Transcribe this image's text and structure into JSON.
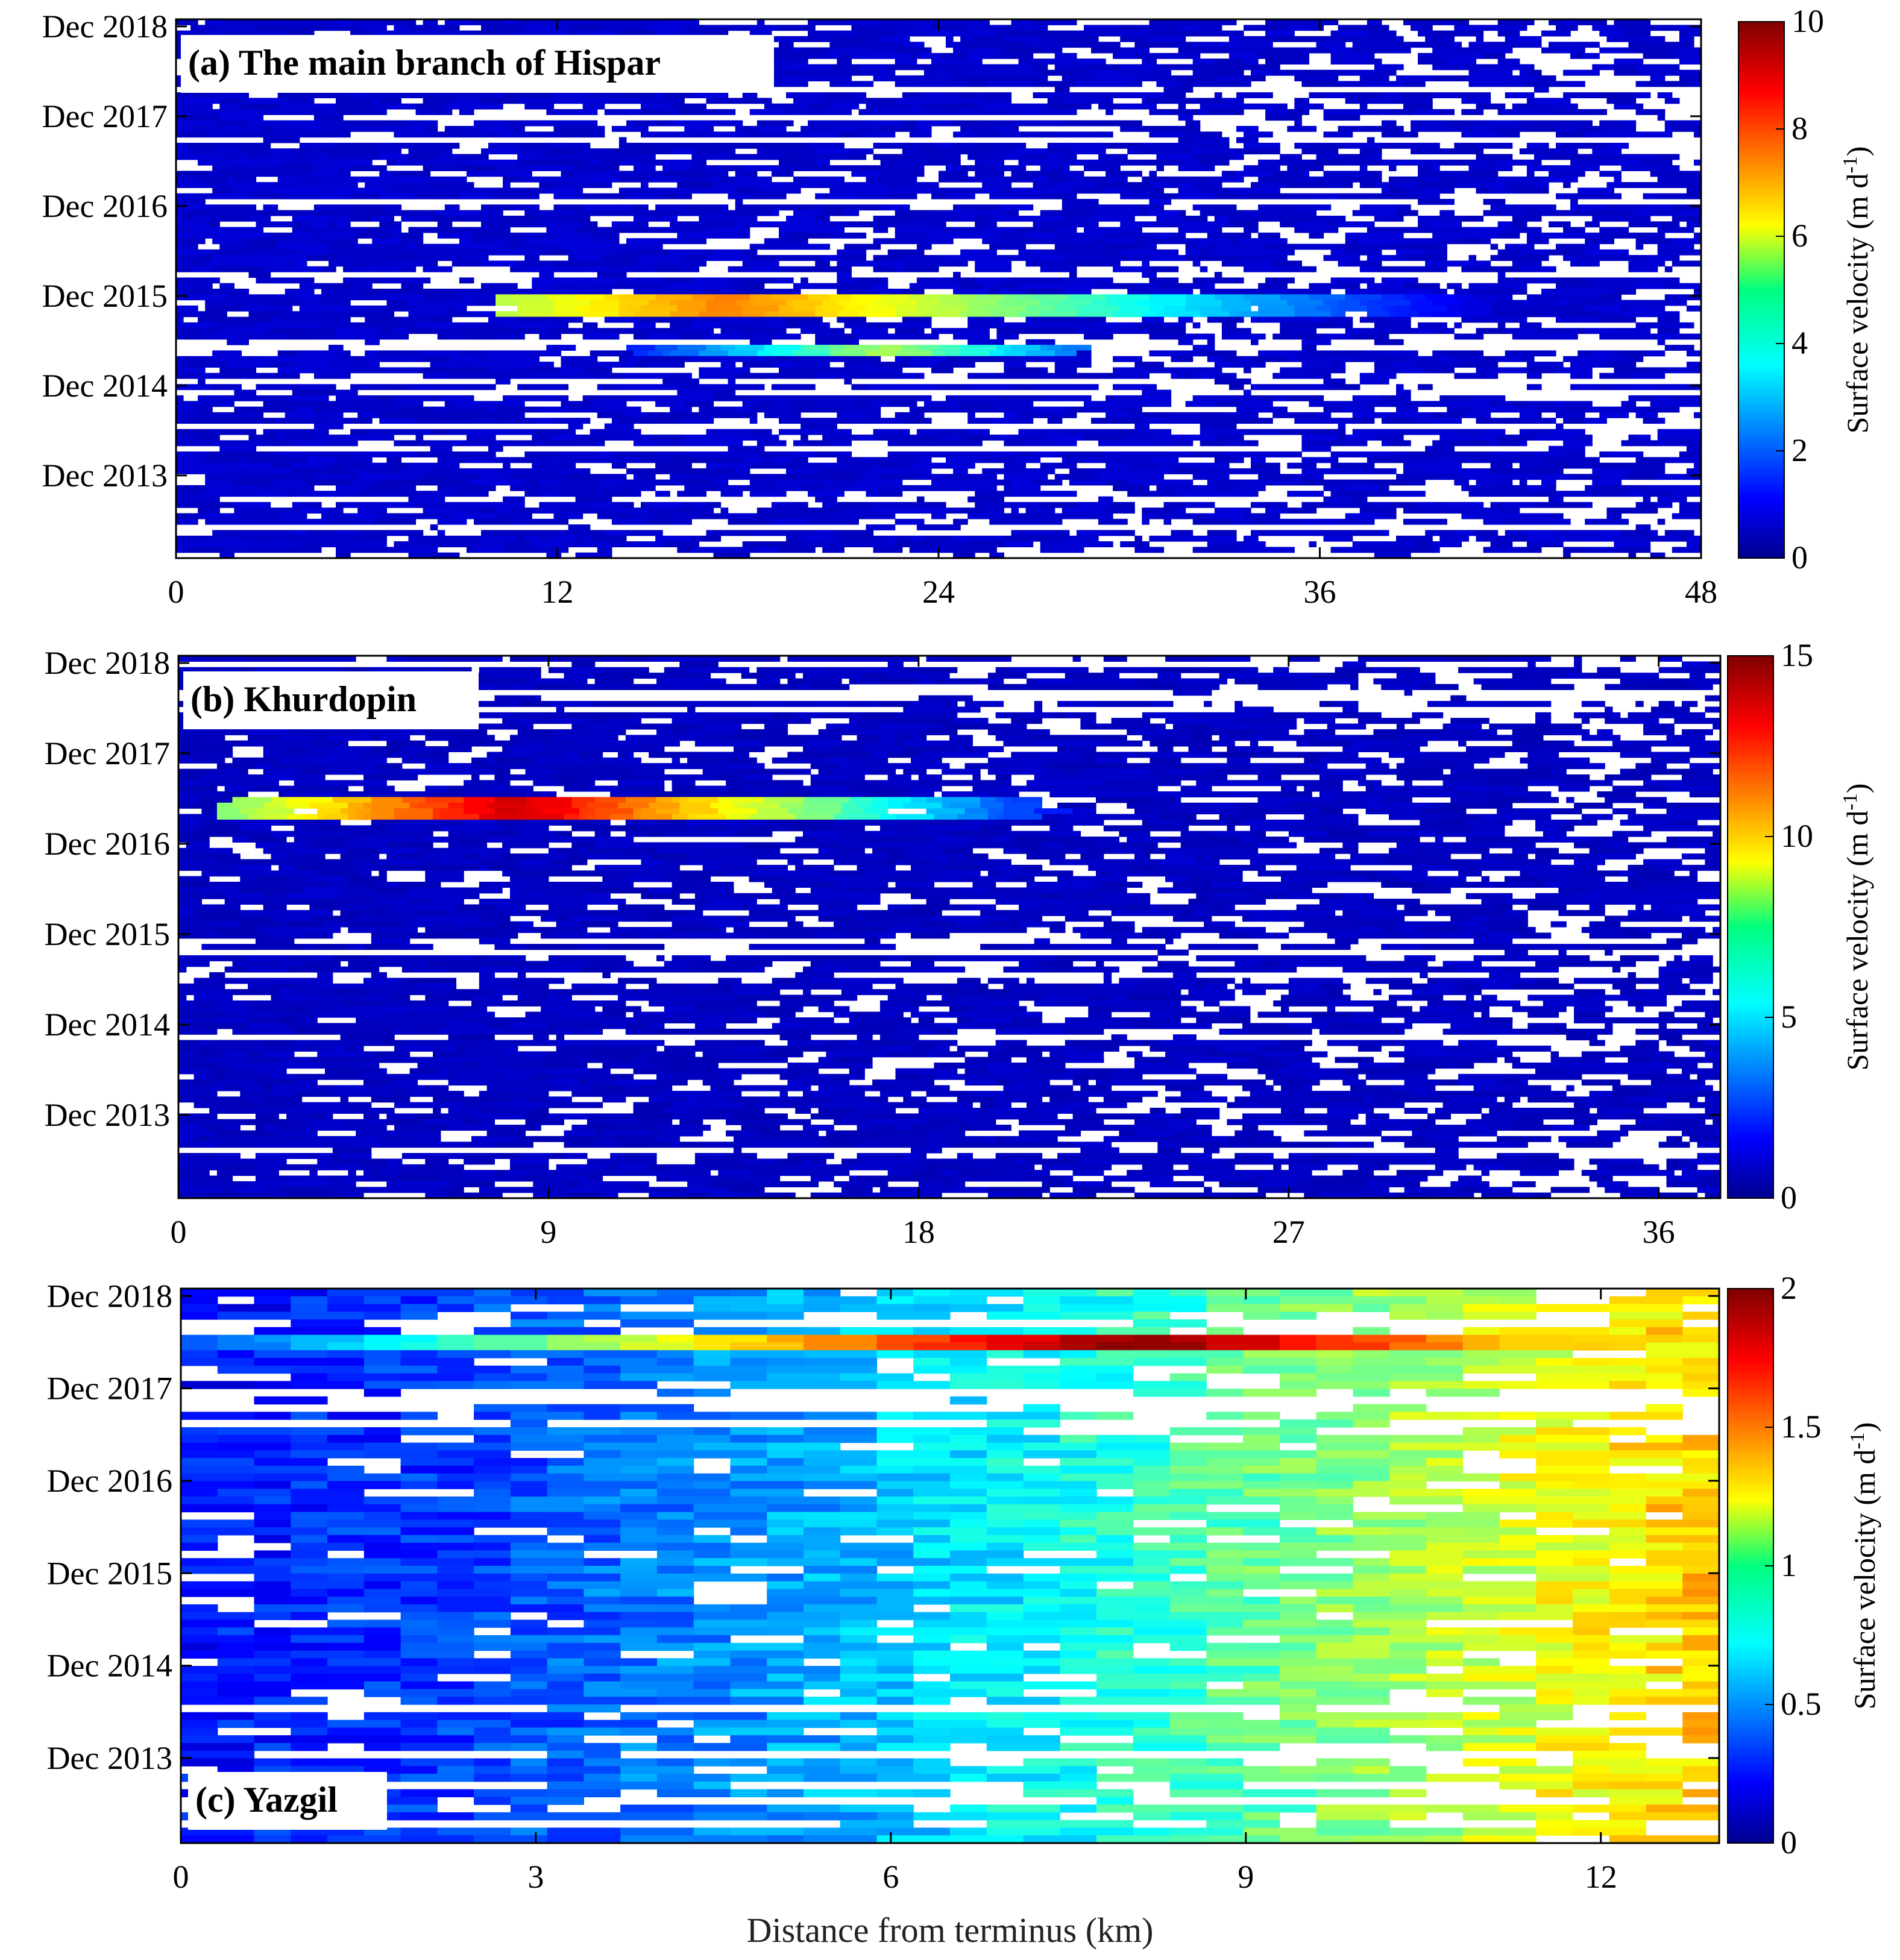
{
  "chart_data": [
    {
      "type": "heatmap",
      "panel_label": "(a) The main branch of Hispar",
      "xlabel": "",
      "ylabel": "",
      "xlim": [
        0,
        48
      ],
      "xticks": [
        0,
        12,
        24,
        36,
        48
      ],
      "xtick_labels": [
        "0",
        "12",
        "24",
        "36",
        "48"
      ],
      "ylim": [
        2013.0,
        2019.0
      ],
      "ytick_values": [
        2013.92,
        2014.92,
        2015.92,
        2016.92,
        2017.92,
        2018.92
      ],
      "ytick_labels": [
        "Dec 2013",
        "Dec 2014",
        "Dec 2015",
        "Dec 2016",
        "Dec 2017",
        "Dec 2018"
      ],
      "colorbar": {
        "label": "Surface velocity (m d",
        "label_sup": "-1",
        "label_end": ")",
        "min": 0,
        "max": 10,
        "ticks": [
          0,
          2,
          4,
          6,
          8,
          10
        ],
        "tick_labels": [
          "0",
          "2",
          "4",
          "6",
          "8",
          "10"
        ],
        "colormap": "jet"
      },
      "features": [
        {
          "description": "surge band",
          "year_start": 2015.7,
          "year_end": 2015.95,
          "x_start": 10,
          "x_end": 45,
          "peak_x": 17,
          "peak_value": 7.5
        },
        {
          "description": "surge band",
          "year_start": 2015.25,
          "year_end": 2015.4,
          "x_start": 14,
          "x_end": 28,
          "peak_x": 22,
          "peak_value": 5.5
        }
      ]
    },
    {
      "type": "heatmap",
      "panel_label": "(b) Khurdopin",
      "xlabel": "",
      "ylabel": "",
      "xlim": [
        0,
        37.5
      ],
      "xticks": [
        0,
        9,
        18,
        27,
        36
      ],
      "xtick_labels": [
        "0",
        "9",
        "18",
        "27",
        "36"
      ],
      "ylim": [
        2013.0,
        2019.0
      ],
      "ytick_values": [
        2013.92,
        2014.92,
        2015.92,
        2016.92,
        2017.92,
        2018.92
      ],
      "ytick_labels": [
        "Dec 2013",
        "Dec 2014",
        "Dec 2015",
        "Dec 2016",
        "Dec 2017",
        "Dec 2018"
      ],
      "colorbar": {
        "label": "Surface velocity (m d",
        "label_sup": "-1",
        "label_end": ")",
        "min": 0,
        "max": 15,
        "ticks": [
          0,
          5,
          10,
          15
        ],
        "tick_labels": [
          "0",
          "5",
          "10",
          "15"
        ],
        "colormap": "jet"
      },
      "features": [
        {
          "description": "surge band",
          "year_start": 2017.2,
          "year_end": 2017.45,
          "x_start": 1,
          "x_end": 21,
          "peak_x": 8,
          "peak_value": 14
        }
      ]
    },
    {
      "type": "heatmap",
      "panel_label": "(c) Yazgil",
      "xlabel": "Distance from terminus (km)",
      "ylabel": "",
      "xlim": [
        0,
        13
      ],
      "xticks": [
        0,
        3,
        6,
        9,
        12
      ],
      "xtick_labels": [
        "0",
        "3",
        "6",
        "9",
        "12"
      ],
      "ylim": [
        2013.0,
        2019.0
      ],
      "ytick_values": [
        2013.92,
        2014.92,
        2015.92,
        2016.92,
        2017.92,
        2018.92
      ],
      "ytick_labels": [
        "Dec 2013",
        "Dec 2014",
        "Dec 2015",
        "Dec 2016",
        "Dec 2017",
        "Dec 2018"
      ],
      "colorbar": {
        "label": "Surface velocity (m d",
        "label_sup": "-1",
        "label_end": ")",
        "min": 0,
        "max": 2,
        "ticks": [
          0,
          0.5,
          1,
          1.5,
          2
        ],
        "tick_labels": [
          "0",
          "0.5",
          "1",
          "1.5",
          "2"
        ],
        "colormap": "jet"
      },
      "features": [
        {
          "description": "speed-up band",
          "year_start": 2018.35,
          "year_end": 2018.5,
          "x_start": 0,
          "x_end": 13,
          "peak_x": 8,
          "peak_value": 2.0
        }
      ]
    }
  ]
}
